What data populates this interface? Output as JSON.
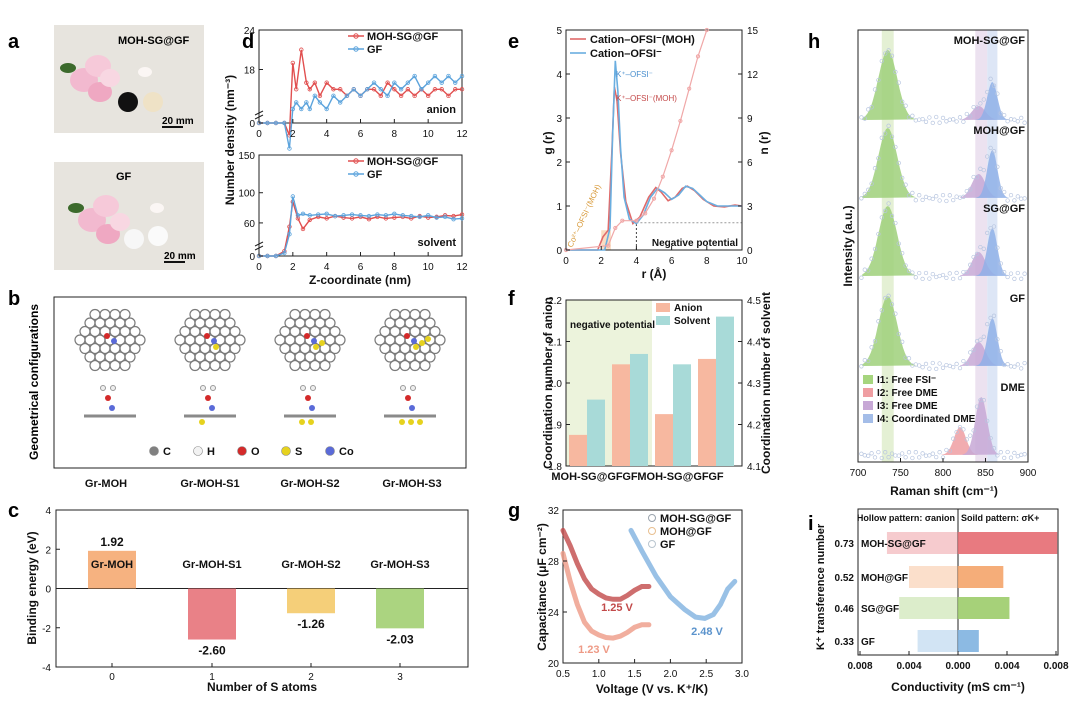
{
  "panel_letters": {
    "a": "a",
    "b": "b",
    "c": "c",
    "d": "d",
    "e": "e",
    "f": "f",
    "g": "g",
    "h": "h",
    "i": "i"
  },
  "panel_a": {
    "photo1_label": "MOH-SG@GF",
    "photo1_scale": "20 mm",
    "photo2_label": "GF",
    "photo2_scale": "20 mm"
  },
  "panel_b": {
    "side_title": "Geometrical configurations",
    "legend": [
      {
        "symbol": "C",
        "color": "#808080"
      },
      {
        "symbol": "H",
        "color": "#f2f2f2"
      },
      {
        "symbol": "O",
        "color": "#d42a2a"
      },
      {
        "symbol": "S",
        "color": "#e6d21e"
      },
      {
        "symbol": "Co",
        "color": "#5a6ad8"
      }
    ],
    "labels": [
      "Gr-MOH",
      "Gr-MOH-S1",
      "Gr-MOH-S2",
      "Gr-MOH-S3"
    ]
  },
  "chart_data": [
    {
      "id": "c",
      "type": "bar",
      "xlabel": "Number of S atoms",
      "ylabel": "Binding energy (eV)",
      "categories": [
        "0",
        "1",
        "2",
        "3"
      ],
      "values": [
        1.92,
        -2.6,
        -1.26,
        -2.03
      ],
      "value_labels": [
        "1.92",
        "-2.60",
        "-1.26",
        "-2.03"
      ],
      "bar_labels": [
        "Gr-MOH",
        "Gr-MOH-S1",
        "Gr-MOH-S2",
        "Gr-MOH-S3"
      ],
      "colors": [
        "#f4a46a",
        "#e56b72",
        "#f3c761",
        "#9ccc6a"
      ],
      "ylim": [
        -4,
        4
      ],
      "yticks": [
        "4",
        "2",
        "0",
        "-2",
        "-4"
      ]
    },
    {
      "id": "d",
      "type": "line",
      "xlabel": "Z-coordinate (nm)",
      "ylabel": "Number density (nm⁻³)",
      "xlim": [
        0,
        12
      ],
      "xticks": [
        "0",
        "2",
        "4",
        "6",
        "8",
        "10",
        "12"
      ],
      "top": {
        "label": "anion",
        "yticks": [
          "24",
          "18",
          "0"
        ],
        "legend": [
          "MOH-SG@GF",
          "GF"
        ],
        "series": [
          {
            "name": "MOH-SG@GF",
            "color": "#e14f4f",
            "x": [
              0,
              0.5,
              1,
              1.5,
              1.8,
              2,
              2.2,
              2.5,
              2.8,
              3,
              3.3,
              3.6,
              4,
              4.4,
              4.8,
              5.2,
              5.6,
              6,
              6.4,
              6.8,
              7.2,
              7.6,
              8,
              8.4,
              8.8,
              9.2,
              9.6,
              10,
              10.4,
              10.8,
              11.2,
              11.6,
              12
            ],
            "y": [
              0,
              0,
              0,
              0,
              8,
              19,
              15,
              21,
              16,
              15,
              16,
              14,
              16,
              15,
              15,
              14,
              15,
              14,
              15,
              15,
              14,
              16,
              15,
              14,
              15,
              14,
              15,
              14,
              15,
              15,
              14,
              15,
              15
            ]
          },
          {
            "name": "GF",
            "color": "#5ba3dc",
            "x": [
              0,
              0.5,
              1,
              1.5,
              1.8,
              2,
              2.2,
              2.5,
              2.8,
              3,
              3.3,
              3.6,
              4,
              4.4,
              4.8,
              5.2,
              5.6,
              6,
              6.4,
              6.8,
              7.2,
              7.6,
              8,
              8.4,
              8.8,
              9.2,
              9.6,
              10,
              10.4,
              10.8,
              11.2,
              11.6,
              12
            ],
            "y": [
              0,
              0,
              0,
              0,
              6,
              12,
              13,
              12,
              13,
              12,
              14,
              13,
              12,
              14,
              13,
              14,
              15,
              14,
              15,
              16,
              15,
              14,
              16,
              15,
              16,
              17,
              15,
              16,
              17,
              16,
              17,
              16,
              17
            ]
          }
        ]
      },
      "bottom": {
        "label": "solvent",
        "yticks": [
          "150",
          "100",
          "60",
          "0"
        ],
        "legend": [
          "MOH-SG@GF",
          "GF"
        ],
        "series": [
          {
            "name": "MOH-SG@GF",
            "color": "#e14f4f",
            "x": [
              0,
              0.5,
              1,
              1.5,
              1.8,
              2,
              2.3,
              2.6,
              3,
              3.5,
              4,
              4.5,
              5,
              5.5,
              6,
              6.5,
              7,
              7.5,
              8,
              8.5,
              9,
              9.5,
              10,
              10.5,
              11,
              11.5,
              12
            ],
            "y": [
              0,
              0,
              0,
              8,
              55,
              88,
              66,
              52,
              64,
              68,
              66,
              69,
              67,
              66,
              68,
              65,
              68,
              66,
              67,
              68,
              66,
              69,
              67,
              68,
              70,
              69,
              71
            ]
          },
          {
            "name": "GF",
            "color": "#5ba3dc",
            "x": [
              0,
              0.5,
              1,
              1.5,
              1.8,
              2,
              2.3,
              2.6,
              3,
              3.5,
              4,
              4.5,
              5,
              5.5,
              6,
              6.5,
              7,
              7.5,
              8,
              8.5,
              9,
              9.5,
              10,
              10.5,
              11,
              11.5,
              12
            ],
            "y": [
              0,
              0,
              0,
              5,
              45,
              95,
              70,
              72,
              70,
              71,
              72,
              69,
              70,
              71,
              70,
              69,
              71,
              70,
              72,
              70,
              69,
              68,
              70,
              67,
              68,
              65,
              66
            ]
          }
        ]
      }
    },
    {
      "id": "e",
      "type": "line",
      "xlabel": "r (Å)",
      "ylabel_left": "g (r)",
      "ylabel_right": "n (r)",
      "xlim": [
        0,
        10
      ],
      "ylim_left": [
        0,
        5
      ],
      "ylim_right": [
        0,
        15
      ],
      "xticks": [
        "0",
        "2",
        "4",
        "6",
        "8",
        "10"
      ],
      "yticks_left": [
        "0",
        "1",
        "2",
        "3",
        "4",
        "5"
      ],
      "yticks_right": [
        "0",
        "3",
        "6",
        "9",
        "12",
        "15"
      ],
      "legend": [
        "Cation–OFSI⁻(MOH)",
        "Cation–OFSI⁻"
      ],
      "peak_labels": [
        "K⁺–OFSI⁻",
        "K⁺–OFSI⁻(MOH)"
      ],
      "shade_label": "Co²⁺–OFSI⁻(MOH)",
      "region_label": "Negative potential",
      "series": [
        {
          "name": "g(r) MOH",
          "color": "#e06a6a",
          "x": [
            0,
            1.8,
            2.1,
            2.4,
            2.6,
            2.75,
            2.9,
            3.1,
            3.4,
            3.8,
            4.2,
            4.7,
            5.1,
            5.4,
            5.8,
            6.2,
            6.6,
            6.9,
            7.3,
            7.8,
            8.4,
            9,
            9.6,
            10
          ],
          "y": [
            0,
            0,
            0.3,
            0.45,
            2.2,
            3.7,
            3.4,
            2.2,
            1.1,
            0.6,
            0.75,
            1.2,
            1.42,
            1.32,
            1.12,
            1.2,
            1.4,
            1.45,
            1.35,
            1.15,
            1.0,
            0.98,
            1.02,
            1.0
          ]
        },
        {
          "name": "g(r) GF",
          "color": "#6aaee0",
          "x": [
            0,
            2.2,
            2.5,
            2.65,
            2.8,
            2.95,
            3.1,
            3.3,
            3.6,
            4,
            4.4,
            4.8,
            5.2,
            5.6,
            6,
            6.4,
            6.8,
            7.2,
            7.6,
            8,
            8.6,
            9.2,
            10
          ],
          "y": [
            0,
            0,
            0.5,
            2.6,
            4.3,
            3.6,
            2.3,
            1.2,
            0.7,
            0.6,
            0.8,
            1.2,
            1.4,
            1.3,
            1.15,
            1.25,
            1.45,
            1.4,
            1.25,
            1.1,
            1.0,
            1.0,
            1.0
          ]
        },
        {
          "name": "n(r) MOH",
          "color": "#f0a8a8",
          "x": [
            0,
            2.4,
            2.8,
            3.2,
            4,
            4.5,
            5,
            5.5,
            6,
            6.5,
            7,
            7.5,
            8
          ],
          "y": [
            0,
            0.3,
            1.5,
            2,
            2,
            2.5,
            3.5,
            5,
            6.8,
            8.8,
            11,
            13.2,
            15
          ]
        }
      ]
    },
    {
      "id": "f",
      "type": "bar",
      "ylabel_left": "Coordination number of anion",
      "ylabel_right": "Coordination number of solvent",
      "categories": [
        "MOH-SG@GF",
        "GF",
        "MOH-SG@GF",
        "GF"
      ],
      "ylim_left": [
        1.8,
        2.2
      ],
      "ylim_right": [
        4.1,
        4.5
      ],
      "yticks_left": [
        "1.8",
        "1.9",
        "2.0",
        "2.1",
        "2.2"
      ],
      "yticks_right": [
        "4.1",
        "4.2",
        "4.3",
        "4.4",
        "4.5"
      ],
      "region_label": "negative potential",
      "legend": [
        "Anion",
        "Solvent"
      ],
      "series": [
        {
          "name": "Anion",
          "color": "#f7b8a0",
          "values": [
            1.875,
            2.045,
            1.925,
            2.058
          ]
        },
        {
          "name": "Solvent",
          "color": "#a8dad8",
          "values": [
            4.26,
            4.37,
            4.345,
            4.46
          ]
        }
      ]
    },
    {
      "id": "g",
      "type": "line",
      "xlabel": "Voltage (V vs. K⁺/K)",
      "ylabel": "Capacitance (μF cm⁻²)",
      "xlim": [
        0.5,
        3.0
      ],
      "ylim": [
        20,
        32
      ],
      "xticks": [
        "0.5",
        "1.0",
        "1.5",
        "2.0",
        "2.5",
        "3.0"
      ],
      "yticks": [
        "20",
        "24",
        "28",
        "32"
      ],
      "legend": [
        "MOH-SG@GF",
        "MOH@GF",
        "GF"
      ],
      "min_labels": [
        "1.25 V",
        "1.23 V",
        "2.48 V"
      ],
      "series": [
        {
          "name": "MOH-SG@GF",
          "color": "#c24a4a",
          "x": [
            0.5,
            0.6,
            0.7,
            0.8,
            0.9,
            1.0,
            1.1,
            1.2,
            1.3,
            1.4,
            1.5,
            1.6,
            1.7
          ],
          "y": [
            30.4,
            29.2,
            27.8,
            26.6,
            25.8,
            25.4,
            25.1,
            25.0,
            25.0,
            25.3,
            25.7,
            26.0,
            26.0
          ]
        },
        {
          "name": "MOH@GF",
          "color": "#ee9a86",
          "x": [
            0.5,
            0.6,
            0.7,
            0.8,
            0.9,
            1.0,
            1.1,
            1.2,
            1.3,
            1.4,
            1.5,
            1.6,
            1.7
          ],
          "y": [
            28.6,
            26.4,
            24.6,
            23.2,
            22.5,
            22.2,
            22.0,
            21.95,
            22.1,
            22.4,
            22.8,
            23.0,
            23.0
          ]
        },
        {
          "name": "GF",
          "color": "#7fb2e0",
          "x": [
            1.45,
            1.6,
            1.8,
            2.0,
            2.2,
            2.35,
            2.48,
            2.6,
            2.7,
            2.8,
            2.9
          ],
          "y": [
            30.4,
            28.8,
            26.8,
            25.2,
            24.2,
            23.6,
            23.5,
            23.8,
            24.6,
            25.8,
            26.4
          ]
        }
      ]
    },
    {
      "id": "h",
      "type": "line",
      "xlabel": "Raman shift (cm⁻¹)",
      "ylabel": "Intensity (a.u.)",
      "xlim": [
        700,
        900
      ],
      "xticks": [
        "700",
        "750",
        "800",
        "850",
        "900"
      ],
      "samples": [
        "MOH-SG@GF",
        "MOH@GF",
        "SG@GF",
        "GF",
        "DME"
      ],
      "legend": [
        "I1: Free FSI⁻",
        "I2: Free DME",
        "I3: Free DME",
        "I4: Coordinated DME"
      ],
      "legend_colors": [
        "#a6d57e",
        "#ef9ea2",
        "#c7a8d6",
        "#a4bde8"
      ],
      "peaks": {
        "I1": 735,
        "I2": 820,
        "I3": 843,
        "I4": 858
      }
    },
    {
      "id": "i",
      "type": "bar",
      "xlabel": "Conductivity (mS cm⁻¹)",
      "ylabel": "K⁺ transference number",
      "xlim": [
        -0.008,
        0.008
      ],
      "xticks": [
        "0.008",
        "0.004",
        "0.000",
        "0.004",
        "0.008"
      ],
      "header_left": "Hollow pattern: σanion",
      "header_right": "Soild pattern: σK+",
      "rows": [
        {
          "tnum": "0.73",
          "name": "MOH-SG@GF",
          "anion": -0.0058,
          "cation": 0.0081,
          "color": "#e56b72"
        },
        {
          "tnum": "0.52",
          "name": "MOH@GF",
          "anion": -0.004,
          "cation": 0.0037,
          "color": "#f4a46a"
        },
        {
          "tnum": "0.46",
          "name": "SG@GF",
          "anion": -0.0048,
          "cation": 0.0042,
          "color": "#9ccc6a"
        },
        {
          "tnum": "0.33",
          "name": "GF",
          "anion": -0.0033,
          "cation": 0.0017,
          "color": "#7fb2e0"
        }
      ]
    }
  ]
}
